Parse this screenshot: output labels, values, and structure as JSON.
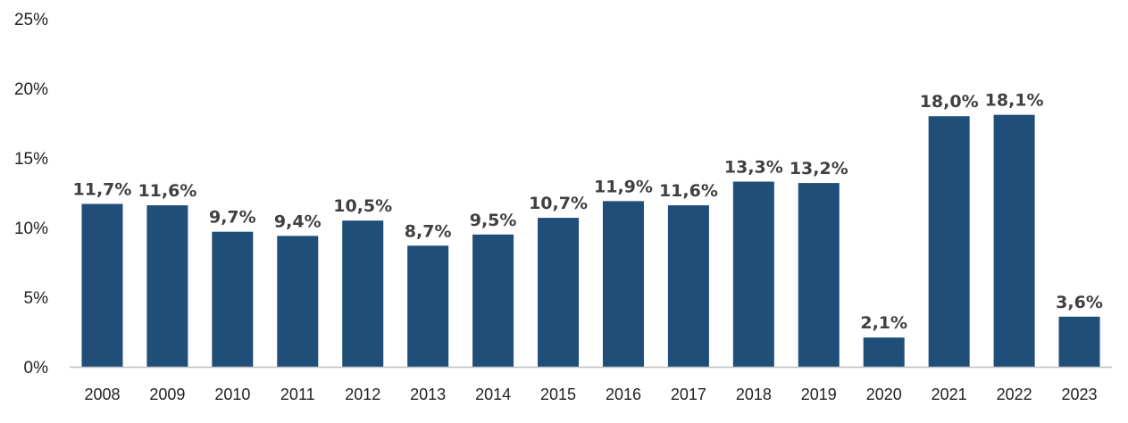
{
  "chart_data": {
    "type": "bar",
    "categories": [
      "2008",
      "2009",
      "2010",
      "2011",
      "2012",
      "2013",
      "2014",
      "2015",
      "2016",
      "2017",
      "2018",
      "2019",
      "2020",
      "2021",
      "2022",
      "2023"
    ],
    "values": [
      11.7,
      11.6,
      9.7,
      9.4,
      10.5,
      8.7,
      9.5,
      10.7,
      11.9,
      11.6,
      13.3,
      13.2,
      2.1,
      18.0,
      18.1,
      3.6
    ],
    "data_labels": [
      "11,7%",
      "11,6%",
      "9,7%",
      "9,4%",
      "10,5%",
      "8,7%",
      "9,5%",
      "10,7%",
      "11,9%",
      "11,6%",
      "13,3%",
      "13,2%",
      "2,1%",
      "18,0%",
      "18,1%",
      "3,6%"
    ],
    "y_ticks": [
      0,
      5,
      10,
      15,
      20,
      25
    ],
    "y_tick_labels": [
      "0%",
      "5%",
      "10%",
      "15%",
      "20%",
      "25%"
    ],
    "ylim": [
      0,
      25
    ],
    "grid": false,
    "legend": "none",
    "bar_color": "#1f4e79",
    "axis_color": "#bfbfbf"
  }
}
